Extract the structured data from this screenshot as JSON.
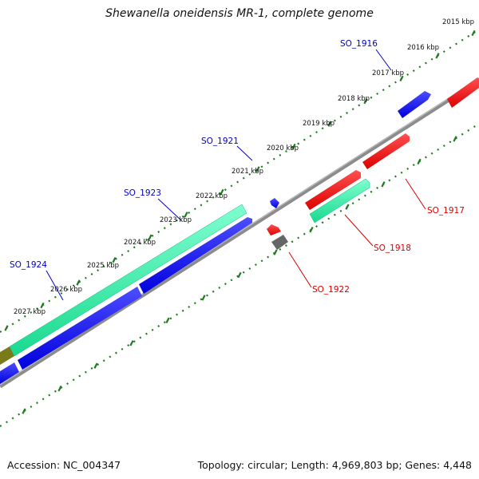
{
  "title": "Shewanella oneidensis MR-1, complete genome",
  "footer": {
    "accession": "Accession: NC_004347",
    "summary": "Topology: circular; Length: 4,969,803 bp; Genes: 4,448"
  },
  "colors": {
    "forward_cds": "#0000ee",
    "forward_rna": "#22e8a0",
    "reverse_cds": "#ee0000",
    "pseudo": "#666666",
    "other": "#7a7a18",
    "backbone": "#8c8c8c",
    "ticks": "#1e7a1e",
    "forward_label": "#0000cc",
    "reverse_label": "#dd0000"
  },
  "ruler_ticks": [
    "2015 kbp",
    "2016 kbp",
    "2017 kbp",
    "2018 kbp",
    "2019 kbp",
    "2020 kbp",
    "2021 kbp",
    "2022 kbp",
    "2023 kbp",
    "2024 kbp",
    "2025 kbp",
    "2026 kbp",
    "2027 kbp"
  ],
  "gene_labels": {
    "forward": [
      "SO_1916",
      "SO_1921",
      "SO_1923",
      "SO_1924"
    ],
    "reverse": [
      "SO_1917",
      "SO_1918",
      "SO_1922"
    ]
  }
}
